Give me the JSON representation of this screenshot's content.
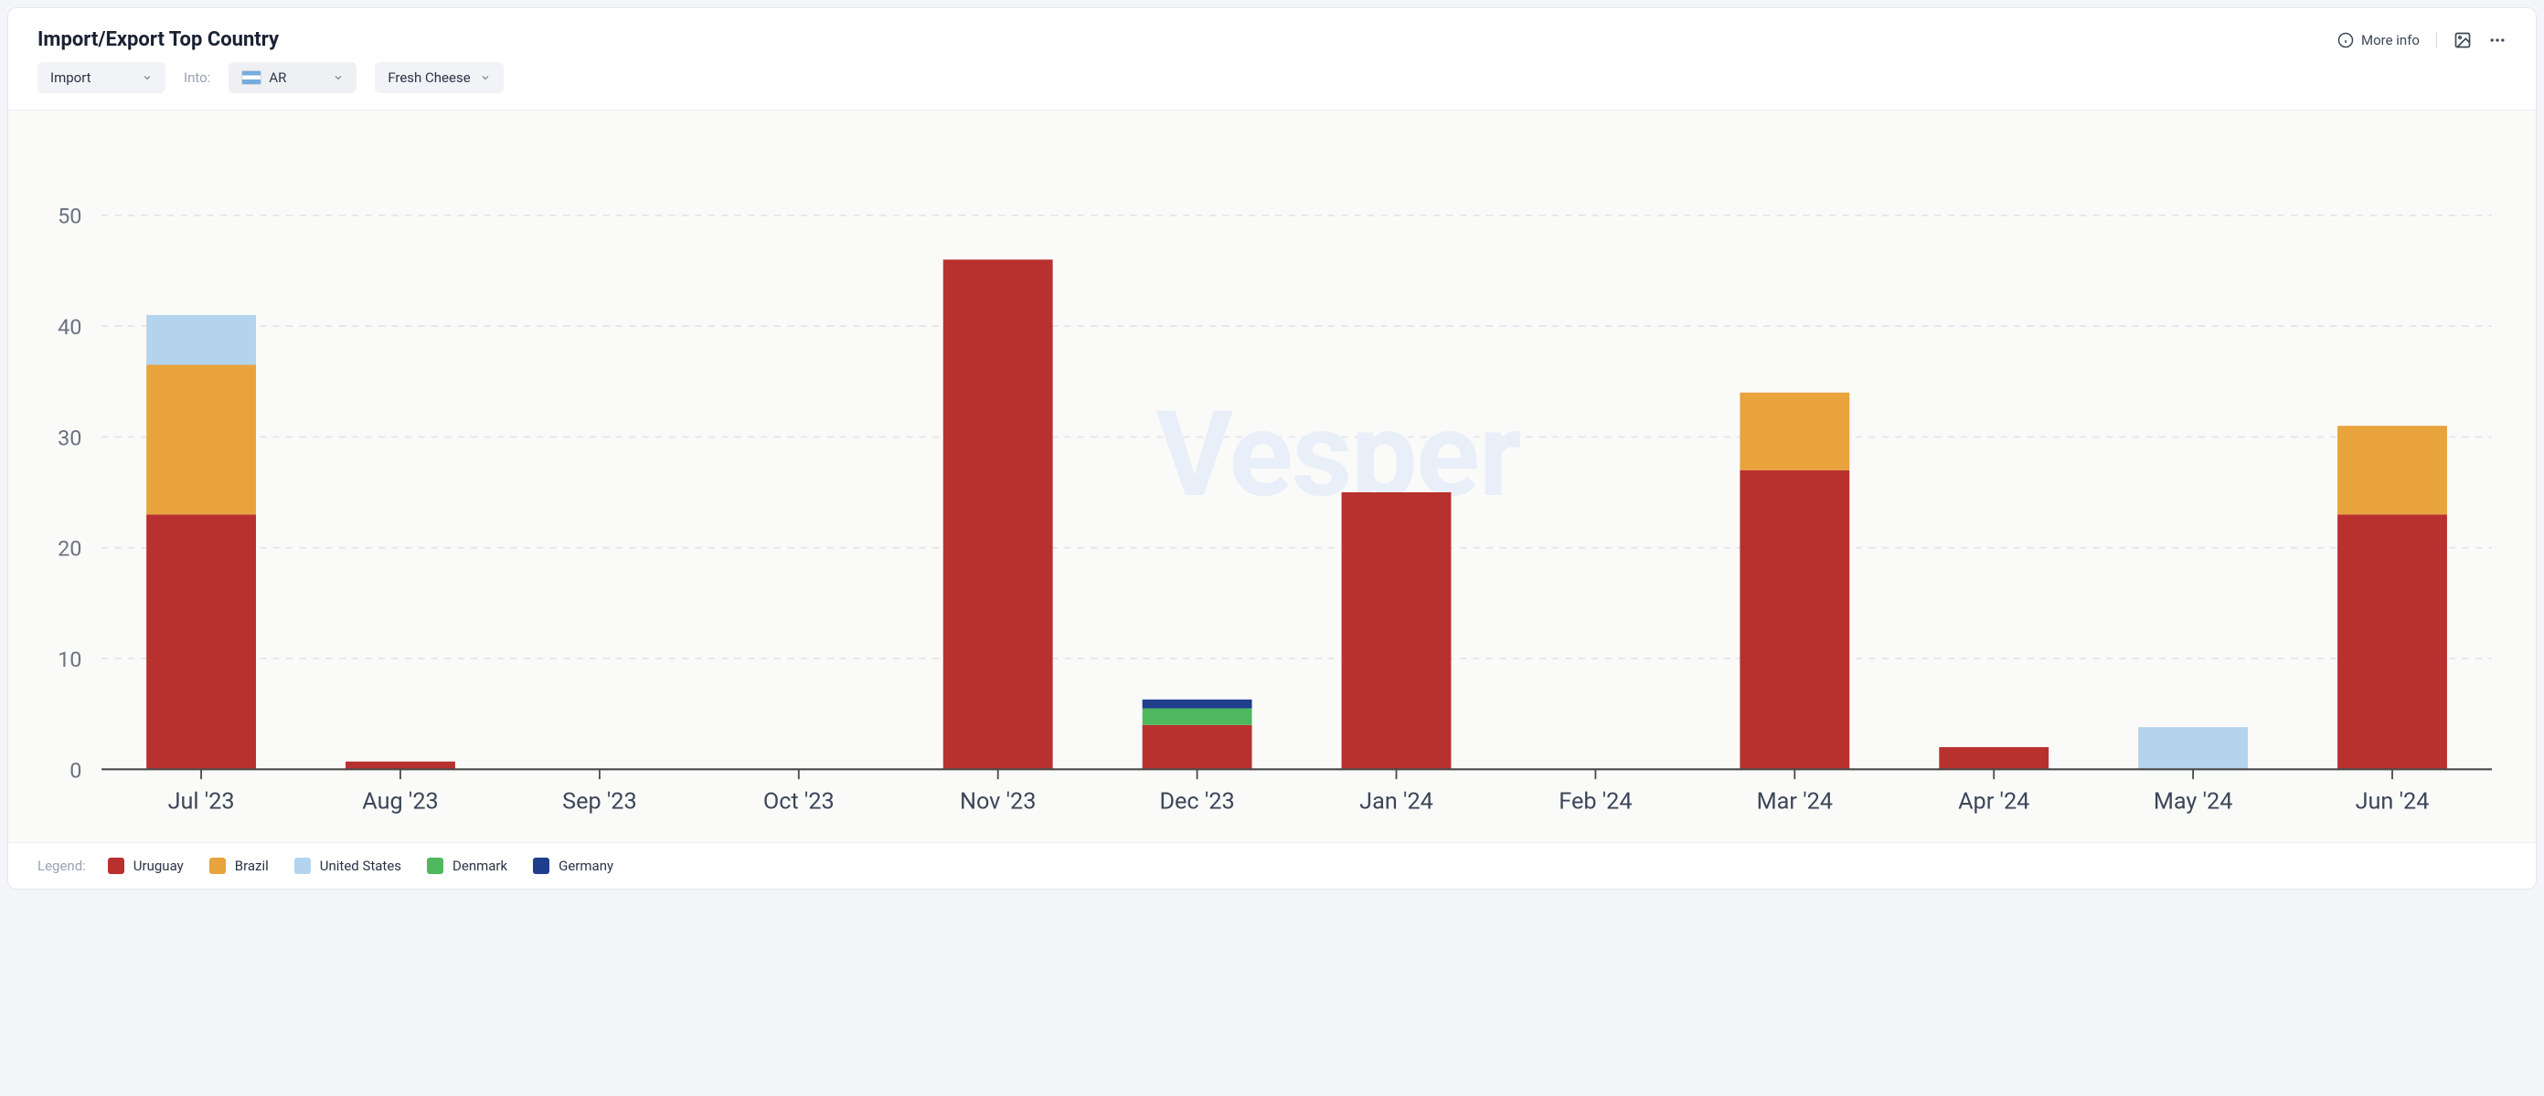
{
  "header": {
    "title": "Import/Export Top Country",
    "more_info": "More info"
  },
  "filters": {
    "direction": "Import",
    "into_label": "Into:",
    "country_code": "AR",
    "product": "Fresh Cheese"
  },
  "chart": {
    "type": "stacked-bar",
    "background_color": "#fafaf9",
    "grid_color": "#e2e5ea",
    "axis_color": "#4a4a4a",
    "watermark_text": "Vesper",
    "watermark_color": "#e9eff9",
    "ylim": [
      0,
      55
    ],
    "yticks": [
      0,
      10,
      20,
      30,
      40,
      50
    ],
    "categories": [
      "Jul '23",
      "Aug '23",
      "Sep '23",
      "Oct '23",
      "Nov '23",
      "Dec '23",
      "Jan '24",
      "Feb '24",
      "Mar '24",
      "Apr '24",
      "May '24",
      "Jun '24"
    ],
    "series": [
      {
        "name": "Uruguay",
        "color": "#b8312f"
      },
      {
        "name": "Brazil",
        "color": "#e8a33d"
      },
      {
        "name": "United States",
        "color": "#b3d4ec"
      },
      {
        "name": "Denmark",
        "color": "#4fb85f"
      },
      {
        "name": "Germany",
        "color": "#1f3f8c"
      }
    ],
    "data": [
      {
        "Uruguay": 23,
        "Brazil": 13.5,
        "United States": 4.5,
        "Denmark": 0,
        "Germany": 0
      },
      {
        "Uruguay": 0.7,
        "Brazil": 0,
        "United States": 0,
        "Denmark": 0,
        "Germany": 0
      },
      {
        "Uruguay": 0,
        "Brazil": 0,
        "United States": 0,
        "Denmark": 0,
        "Germany": 0
      },
      {
        "Uruguay": 0,
        "Brazil": 0,
        "United States": 0,
        "Denmark": 0,
        "Germany": 0
      },
      {
        "Uruguay": 46,
        "Brazil": 0,
        "United States": 0,
        "Denmark": 0,
        "Germany": 0
      },
      {
        "Uruguay": 4,
        "Brazil": 0,
        "United States": 0,
        "Denmark": 1.5,
        "Germany": 0.8
      },
      {
        "Uruguay": 25,
        "Brazil": 0,
        "United States": 0,
        "Denmark": 0,
        "Germany": 0
      },
      {
        "Uruguay": 0,
        "Brazil": 0,
        "United States": 0,
        "Denmark": 0,
        "Germany": 0
      },
      {
        "Uruguay": 27,
        "Brazil": 7,
        "United States": 0,
        "Denmark": 0,
        "Germany": 0
      },
      {
        "Uruguay": 2,
        "Brazil": 0,
        "United States": 0,
        "Denmark": 0,
        "Germany": 0
      },
      {
        "Uruguay": 0,
        "Brazil": 0,
        "United States": 3.8,
        "Denmark": 0,
        "Germany": 0
      },
      {
        "Uruguay": 23,
        "Brazil": 8,
        "United States": 0,
        "Denmark": 0,
        "Germany": 0
      }
    ],
    "bar_width_ratio": 0.55,
    "tick_label_color": "#3c4658",
    "ytick_label_color": "#6b7280"
  },
  "legend": {
    "title": "Legend:"
  }
}
